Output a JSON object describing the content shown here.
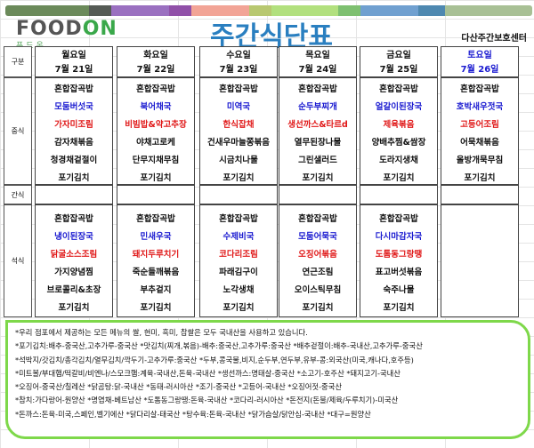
{
  "colors": {
    "title": "#2a7fc0",
    "menu_blue": "#1a1ad0",
    "menu_red": "#e01818",
    "notes_border": "#7ed84a",
    "bar": [
      "#6b8a5a",
      "#555a55",
      "#9a70c0",
      "#9050a8",
      "#f2a496",
      "#b8c870",
      "#b2e07e",
      "#7ec070",
      "#70a0d0",
      "#4e88b0",
      "#a8c095"
    ]
  },
  "logo": {
    "en_prefix": "FOOD",
    "en_suffix": "ON",
    "ko": "푸드온"
  },
  "title": "주간식단표",
  "center_name": "다산주간보호센터",
  "row_labels": {
    "category": "구분",
    "lunch": "중식",
    "snack": "간식",
    "dinner": "석식"
  },
  "days": [
    {
      "day": "월요일",
      "date": "7월 21일",
      "lunch": [
        "혼합잡곡밥",
        "모둠버섯국",
        "가자미조림",
        "감자채볶음",
        "청경채겉절이",
        "포기김치"
      ],
      "dinner": [
        "혼합잡곡밥",
        "냉이된장국",
        "닭굴소스조림",
        "가지양념찜",
        "브로콜리&초장",
        "포기김치"
      ]
    },
    {
      "day": "화요일",
      "date": "7월 22일",
      "lunch": [
        "혼합잡곡밥",
        "북어채국",
        "비빔밥&약고추장",
        "야채고로케",
        "단무지채무침",
        "포기김치"
      ],
      "dinner": [
        "혼합잡곡밥",
        "민새우국",
        "돼지두루치기",
        "죽순들깨볶음",
        "부추겉지",
        "포기김치"
      ]
    },
    {
      "day": "수요일",
      "date": "7월 23일",
      "lunch": [
        "혼합잡곡밥",
        "미역국",
        "한식잡채",
        "건새우마늘쫑볶음",
        "시금치나물",
        "포기김치"
      ],
      "dinner": [
        "혼합잡곡밥",
        "수제비국",
        "코다리조림",
        "파래김구이",
        "노각생채",
        "포기김치"
      ]
    },
    {
      "day": "목요일",
      "date": "7월 24일",
      "lunch": [
        "혼합잡곡밥",
        "순두부찌개",
        "생선까스&타르d",
        "열무된장나물",
        "그린샐러드",
        "포기김치"
      ],
      "dinner": [
        "혼합잡곡밥",
        "모둠어묵국",
        "오징어볶음",
        "연근조림",
        "오이스틱무침",
        "포기김치"
      ]
    },
    {
      "day": "금요일",
      "date": "7월 25일",
      "lunch": [
        "혼합잡곡밥",
        "얼갈이된장국",
        "제육볶음",
        "양배추찜&쌈장",
        "도라지생채",
        "포기김치"
      ],
      "dinner": [
        "혼합잡곡밥",
        "다시마감자국",
        "도톰동그랑땡",
        "표고버섯볶음",
        "숙주나물",
        "포기김치"
      ]
    },
    {
      "day": "토요일",
      "date": "7월 26일",
      "lunch": [
        "혼합잡곡밥",
        "호박새우젓국",
        "고등어조림",
        "어묵채볶음",
        "올방개묵무침",
        "포기김치"
      ],
      "dinner": []
    }
  ],
  "notes": [
    "*우리 점포에서 제공하는 모든 메뉴의 쌀, 현미, 흑미, 찹쌀은 모두 국내산을 사용하고 있습니다.",
    "*포기김치:배추-중국산,고추가루-중국산  *맛김치(찌개,볶음)-배추:중국산,고추가루:중국산  *배추겉절이:배추-국내산,고추가루-중국산",
    "*석박지/갓김치/총각김치/열무김치/깍두기-고추가루:중국산  *두부,콩국물,비지,순두부,연두부,유부-콩:외국산(미국,캐나다,호주등)",
    "*미트볼/부대햄/떡갈비/비엔나/스모크햄:계육-국내산,돈육-국내산  *생선까스:명태살-중국산  *소고기-호주산  *돼지고기-국내산",
    "*오징어-중국산/칠레산  *닭곰탕:닭-국내산  *동태-러시아산  *조기-중국산  *고등어-국내산  *오징어젓-중국산",
    "*참치:가다랑어-원양산  *명엽채-베트남산  *도톰동그랑땡:돈육-국내산  *코다리-러시아산  *돈전지(돈불/제육/두루치기)-미국산",
    "*돈까스:돈육-미국,스페인,벨기에산  *닭다리살-태국산  *탕수육:돈육-국내산  *닭가슴살/닭안심-국내산  *대구=원양산"
  ]
}
